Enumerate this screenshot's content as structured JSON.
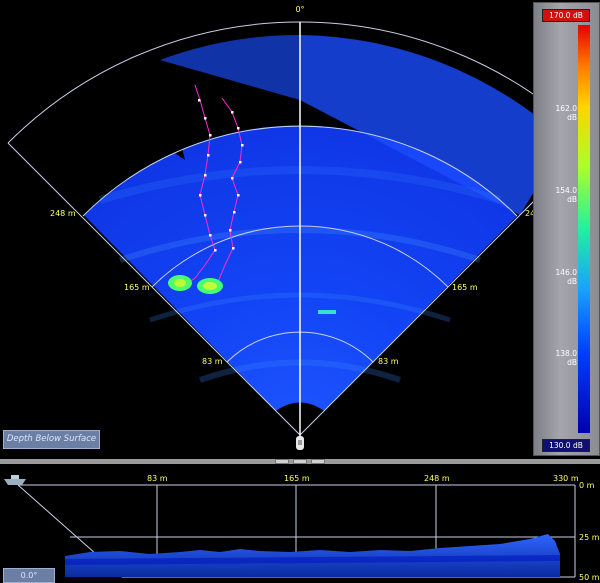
{
  "sonar": {
    "bearing_top": "0°",
    "ranges": {
      "r248": "248 m",
      "r165": "165 m",
      "r83": "83 m"
    }
  },
  "depth_button": {
    "label": "Depth Below Surface"
  },
  "angle_button": {
    "label": "0.0°"
  },
  "color_scale": {
    "max": "170.0 dB",
    "min": "130.0 dB",
    "ticks": [
      "162.0 dB",
      "154.0 dB",
      "146.0 dB",
      "138.0 dB"
    ]
  },
  "cross_section": {
    "x_ticks": [
      "83 m",
      "165 m",
      "248 m",
      "330 m"
    ],
    "depth_ticks": [
      "0 m",
      "25 m",
      "50 m"
    ]
  },
  "colors": {
    "water": "#0a3cff",
    "grid": "#c8d0e8",
    "range_label": "#ffff66",
    "fish_track": "#ff2ad4"
  }
}
